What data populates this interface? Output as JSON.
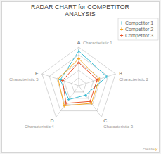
{
  "chart_data": {
    "type": "radar",
    "title": "RADAR CHART for COMPETITOR",
    "subtitle": "ANALYSIS",
    "categories": [
      "A",
      "B",
      "C",
      "D",
      "E"
    ],
    "category_descriptions": [
      "Characteristic 1",
      "Characteristic 2",
      "Characteristic 3",
      "Characteristic 4",
      "Characteristic 5"
    ],
    "series": [
      {
        "name": "Competitor 1",
        "color": "#3bbcd4",
        "values": [
          4.5,
          3.8,
          1.5,
          2.2,
          2.5
        ]
      },
      {
        "name": "Competitor 2",
        "color": "#f5a623",
        "values": [
          3.5,
          2.8,
          2.8,
          3.2,
          2.8
        ]
      },
      {
        "name": "Competitor 3",
        "color": "#e8522a",
        "values": [
          3.0,
          2.5,
          2.5,
          2.8,
          2.2
        ]
      }
    ],
    "rlim": [
      0,
      5
    ],
    "rticks": [
      1,
      2,
      3,
      4,
      5
    ],
    "tick_labels": false,
    "grid": true,
    "marker": "plus",
    "legend": "upper right",
    "annotations": [
      "create",
      "ly"
    ]
  }
}
